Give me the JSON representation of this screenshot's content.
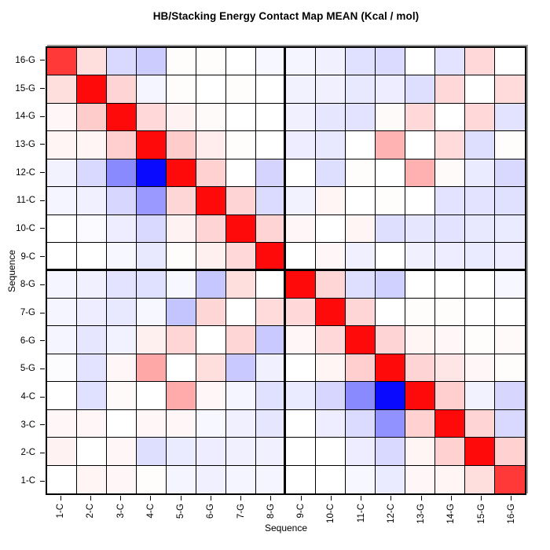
{
  "chart_data": {
    "type": "heatmap",
    "title": "HB/Stacking Energy Contact Map MEAN (Kcal / mol)",
    "xlabel": "Sequence",
    "ylabel": "Sequence",
    "x_categories": [
      "1-C",
      "2-C",
      "3-C",
      "4-C",
      "5-G",
      "6-G",
      "7-G",
      "8-G",
      "9-C",
      "10-C",
      "11-C",
      "12-C",
      "13-G",
      "14-G",
      "15-G",
      "16-G"
    ],
    "y_categories_top_to_bottom": [
      "16-G",
      "15-G",
      "14-G",
      "13-G",
      "12-C",
      "11-C",
      "10-C",
      "9-C",
      "8-G",
      "7-G",
      "6-G",
      "5-G",
      "4-C",
      "3-C",
      "2-C",
      "1-C"
    ],
    "colormap": {
      "negative_end": "#0000FF",
      "midpoint": "#FFFFFF",
      "positive_end": "#FF0000",
      "scale_note": "no colorbar shown; values below are normalized color intensities read from pixels, -1 = saturated blue, +1 = saturated red"
    },
    "grid_on": true,
    "quadrant_divider_after_index": 8,
    "values_normalized": [
      [
        0.78,
        0.13,
        -0.15,
        -0.2,
        0.01,
        0.01,
        0.0,
        -0.03,
        -0.04,
        -0.06,
        -0.12,
        -0.14,
        0.0,
        -0.11,
        0.15,
        0.0
      ],
      [
        0.13,
        0.96,
        0.17,
        -0.04,
        0.01,
        0.0,
        0.01,
        0.0,
        -0.05,
        -0.06,
        -0.09,
        -0.07,
        -0.13,
        0.15,
        0.0,
        0.14
      ],
      [
        0.03,
        0.2,
        0.96,
        0.15,
        0.05,
        0.02,
        0.0,
        0.0,
        -0.06,
        -0.1,
        -0.11,
        0.02,
        0.15,
        0.0,
        0.15,
        -0.11
      ],
      [
        0.04,
        0.04,
        0.19,
        0.96,
        0.2,
        0.07,
        0.01,
        0.0,
        -0.07,
        -0.09,
        0.0,
        0.3,
        0.0,
        0.14,
        -0.13,
        0.01
      ],
      [
        -0.05,
        -0.15,
        -0.46,
        -0.96,
        0.96,
        0.18,
        0.0,
        -0.17,
        0.0,
        -0.13,
        0.01,
        0.0,
        0.31,
        0.02,
        -0.08,
        -0.15
      ],
      [
        -0.04,
        -0.06,
        -0.16,
        -0.4,
        0.16,
        0.96,
        0.17,
        -0.14,
        -0.05,
        0.04,
        0.0,
        0.01,
        0.0,
        -0.11,
        -0.11,
        -0.12
      ],
      [
        0.0,
        -0.02,
        -0.07,
        -0.15,
        0.05,
        0.17,
        0.96,
        0.17,
        0.03,
        0.0,
        0.04,
        -0.13,
        -0.1,
        -0.11,
        -0.09,
        -0.08
      ],
      [
        0.0,
        0.0,
        -0.03,
        -0.09,
        0.01,
        0.06,
        0.15,
        0.96,
        0.0,
        0.03,
        -0.06,
        0.0,
        -0.06,
        -0.07,
        -0.08,
        -0.07
      ],
      [
        -0.04,
        -0.06,
        -0.11,
        -0.12,
        -0.03,
        -0.22,
        0.13,
        0.0,
        0.96,
        0.16,
        -0.13,
        -0.18,
        0.0,
        0.0,
        0.0,
        -0.03
      ],
      [
        -0.04,
        -0.07,
        -0.09,
        -0.03,
        -0.23,
        0.16,
        0.0,
        0.14,
        0.15,
        0.96,
        0.16,
        0.0,
        0.01,
        0.01,
        0.0,
        0.0
      ],
      [
        -0.04,
        -0.1,
        -0.05,
        0.06,
        0.16,
        0.0,
        0.16,
        -0.21,
        0.03,
        0.15,
        0.96,
        0.17,
        0.04,
        0.03,
        0.01,
        0.02
      ],
      [
        -0.01,
        -0.11,
        0.03,
        0.34,
        0.0,
        0.13,
        -0.21,
        -0.06,
        0.0,
        0.04,
        0.19,
        0.96,
        0.17,
        0.1,
        0.03,
        0.01
      ],
      [
        0.0,
        -0.12,
        0.02,
        0.0,
        0.33,
        0.03,
        -0.04,
        -0.12,
        -0.08,
        -0.16,
        -0.46,
        -0.96,
        0.96,
        0.19,
        -0.05,
        -0.16
      ],
      [
        0.03,
        0.03,
        0.0,
        0.03,
        0.03,
        -0.03,
        -0.06,
        -0.1,
        0.0,
        -0.07,
        -0.14,
        -0.43,
        0.18,
        0.96,
        0.17,
        -0.15
      ],
      [
        0.05,
        0.0,
        0.03,
        -0.13,
        -0.08,
        -0.07,
        -0.06,
        -0.06,
        0.0,
        0.0,
        -0.07,
        -0.15,
        0.04,
        0.18,
        0.96,
        0.18
      ],
      [
        0.0,
        0.04,
        0.03,
        0.01,
        -0.04,
        -0.06,
        -0.04,
        -0.04,
        0.0,
        0.0,
        -0.03,
        -0.08,
        0.03,
        0.04,
        0.13,
        0.78
      ]
    ]
  }
}
